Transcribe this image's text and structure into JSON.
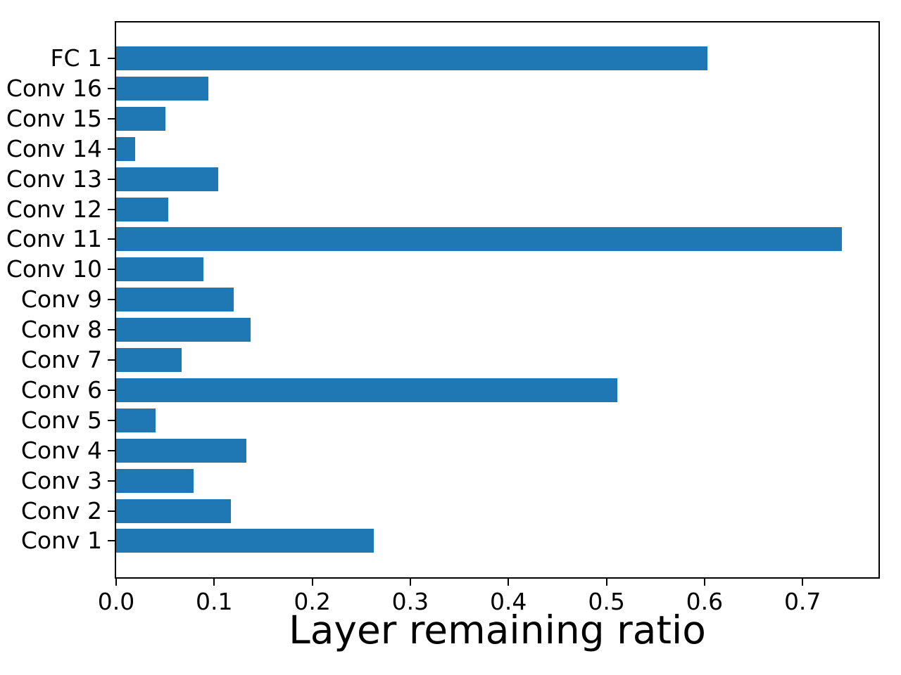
{
  "chart_data": {
    "type": "bar",
    "orientation": "horizontal",
    "title": "",
    "xlabel": "Layer remaining ratio",
    "ylabel": "",
    "categories_top_to_bottom": [
      "FC 1",
      "Conv 16",
      "Conv 15",
      "Conv 14",
      "Conv 13",
      "Conv 12",
      "Conv 11",
      "Conv 10",
      "Conv 9",
      "Conv 8",
      "Conv 7",
      "Conv 6",
      "Conv 5",
      "Conv 4",
      "Conv 3",
      "Conv 2",
      "Conv 1"
    ],
    "values": [
      0.603,
      0.094,
      0.05,
      0.019,
      0.104,
      0.053,
      0.74,
      0.089,
      0.12,
      0.137,
      0.067,
      0.511,
      0.04,
      0.133,
      0.079,
      0.117,
      0.263
    ],
    "xticks": [
      0.0,
      0.1,
      0.2,
      0.3,
      0.4,
      0.5,
      0.6,
      0.7
    ],
    "xtick_labels": [
      "0.0",
      "0.1",
      "0.2",
      "0.3",
      "0.4",
      "0.5",
      "0.6",
      "0.7"
    ],
    "xlim": [
      0,
      0.7774
    ],
    "bar_color": "#1f77b4",
    "axis_color": "#000000",
    "background_color": "#ffffff",
    "grid": false,
    "legend": null
  }
}
